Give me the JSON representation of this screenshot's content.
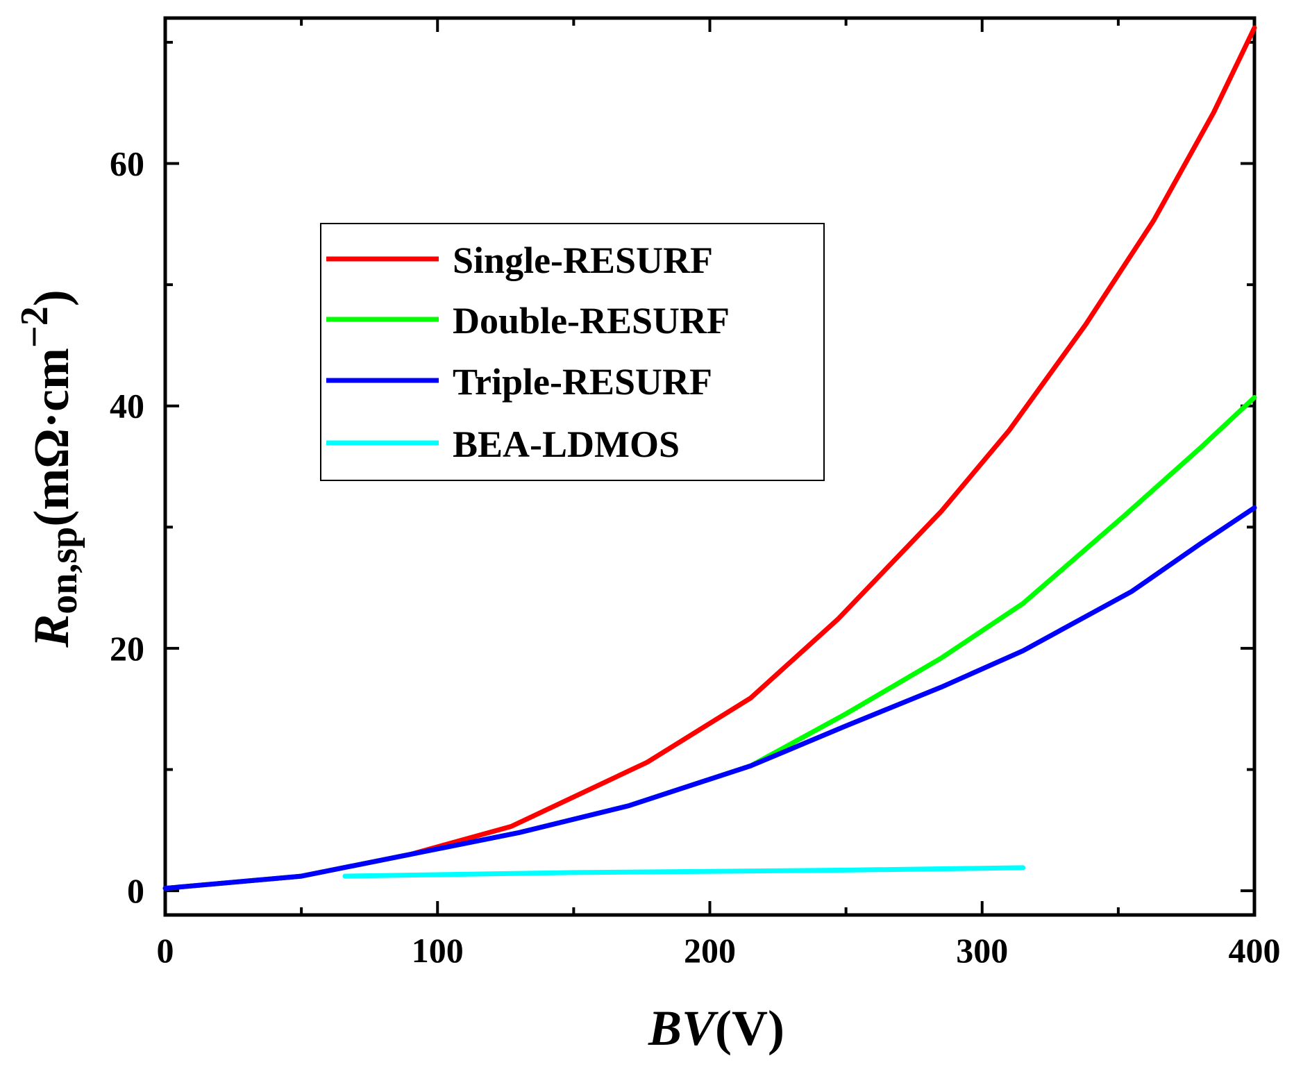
{
  "chart_data": {
    "type": "line",
    "title": "",
    "xlabel": {
      "italic": "BV",
      "unit": "(V)"
    },
    "ylabel": {
      "symbol": "R",
      "subscript": "on,sp",
      "unit_open": "(mΩ·cm",
      "exponent": "−2",
      "unit_close": ")"
    },
    "xlim": [
      0,
      400
    ],
    "ylim": [
      -2,
      72
    ],
    "xticks": [
      0,
      100,
      200,
      300,
      400
    ],
    "xtick_labels": [
      "0",
      "100",
      "200",
      "300",
      "400"
    ],
    "yticks": [
      0,
      20,
      40,
      60
    ],
    "ytick_labels": [
      "0",
      "20",
      "40",
      "60"
    ],
    "grid": false,
    "legend_position": "upper-left-center",
    "series": [
      {
        "name": "Single-RESURF",
        "color": "#ff0000",
        "x": [
          0,
          50,
          90,
          127,
          177,
          215,
          247,
          285,
          310,
          338,
          363,
          385,
          400
        ],
        "y": [
          0.2,
          1.2,
          3.0,
          5.3,
          10.6,
          15.9,
          22.4,
          31.3,
          38.0,
          46.7,
          55.3,
          64.2,
          71.2
        ]
      },
      {
        "name": "Double-RESURF",
        "color": "#00ff00",
        "x": [
          0,
          50,
          90,
          130,
          170,
          215,
          250,
          285,
          315,
          352,
          380,
          400
        ],
        "y": [
          0.2,
          1.2,
          3.0,
          4.8,
          7.0,
          10.3,
          14.6,
          19.2,
          23.7,
          30.9,
          36.5,
          40.7
        ]
      },
      {
        "name": "Triple-RESURF",
        "color": "#0000ff",
        "x": [
          0,
          50,
          90,
          130,
          170,
          215,
          250,
          285,
          315,
          355,
          380,
          400
        ],
        "y": [
          0.2,
          1.2,
          3.0,
          4.8,
          7.0,
          10.3,
          13.6,
          16.8,
          19.8,
          24.7,
          28.6,
          31.6
        ]
      },
      {
        "name": "BEA-LDMOS",
        "color": "#00ffff",
        "x": [
          66,
          150,
          250,
          315
        ],
        "y": [
          1.2,
          1.5,
          1.7,
          1.9
        ]
      }
    ]
  }
}
